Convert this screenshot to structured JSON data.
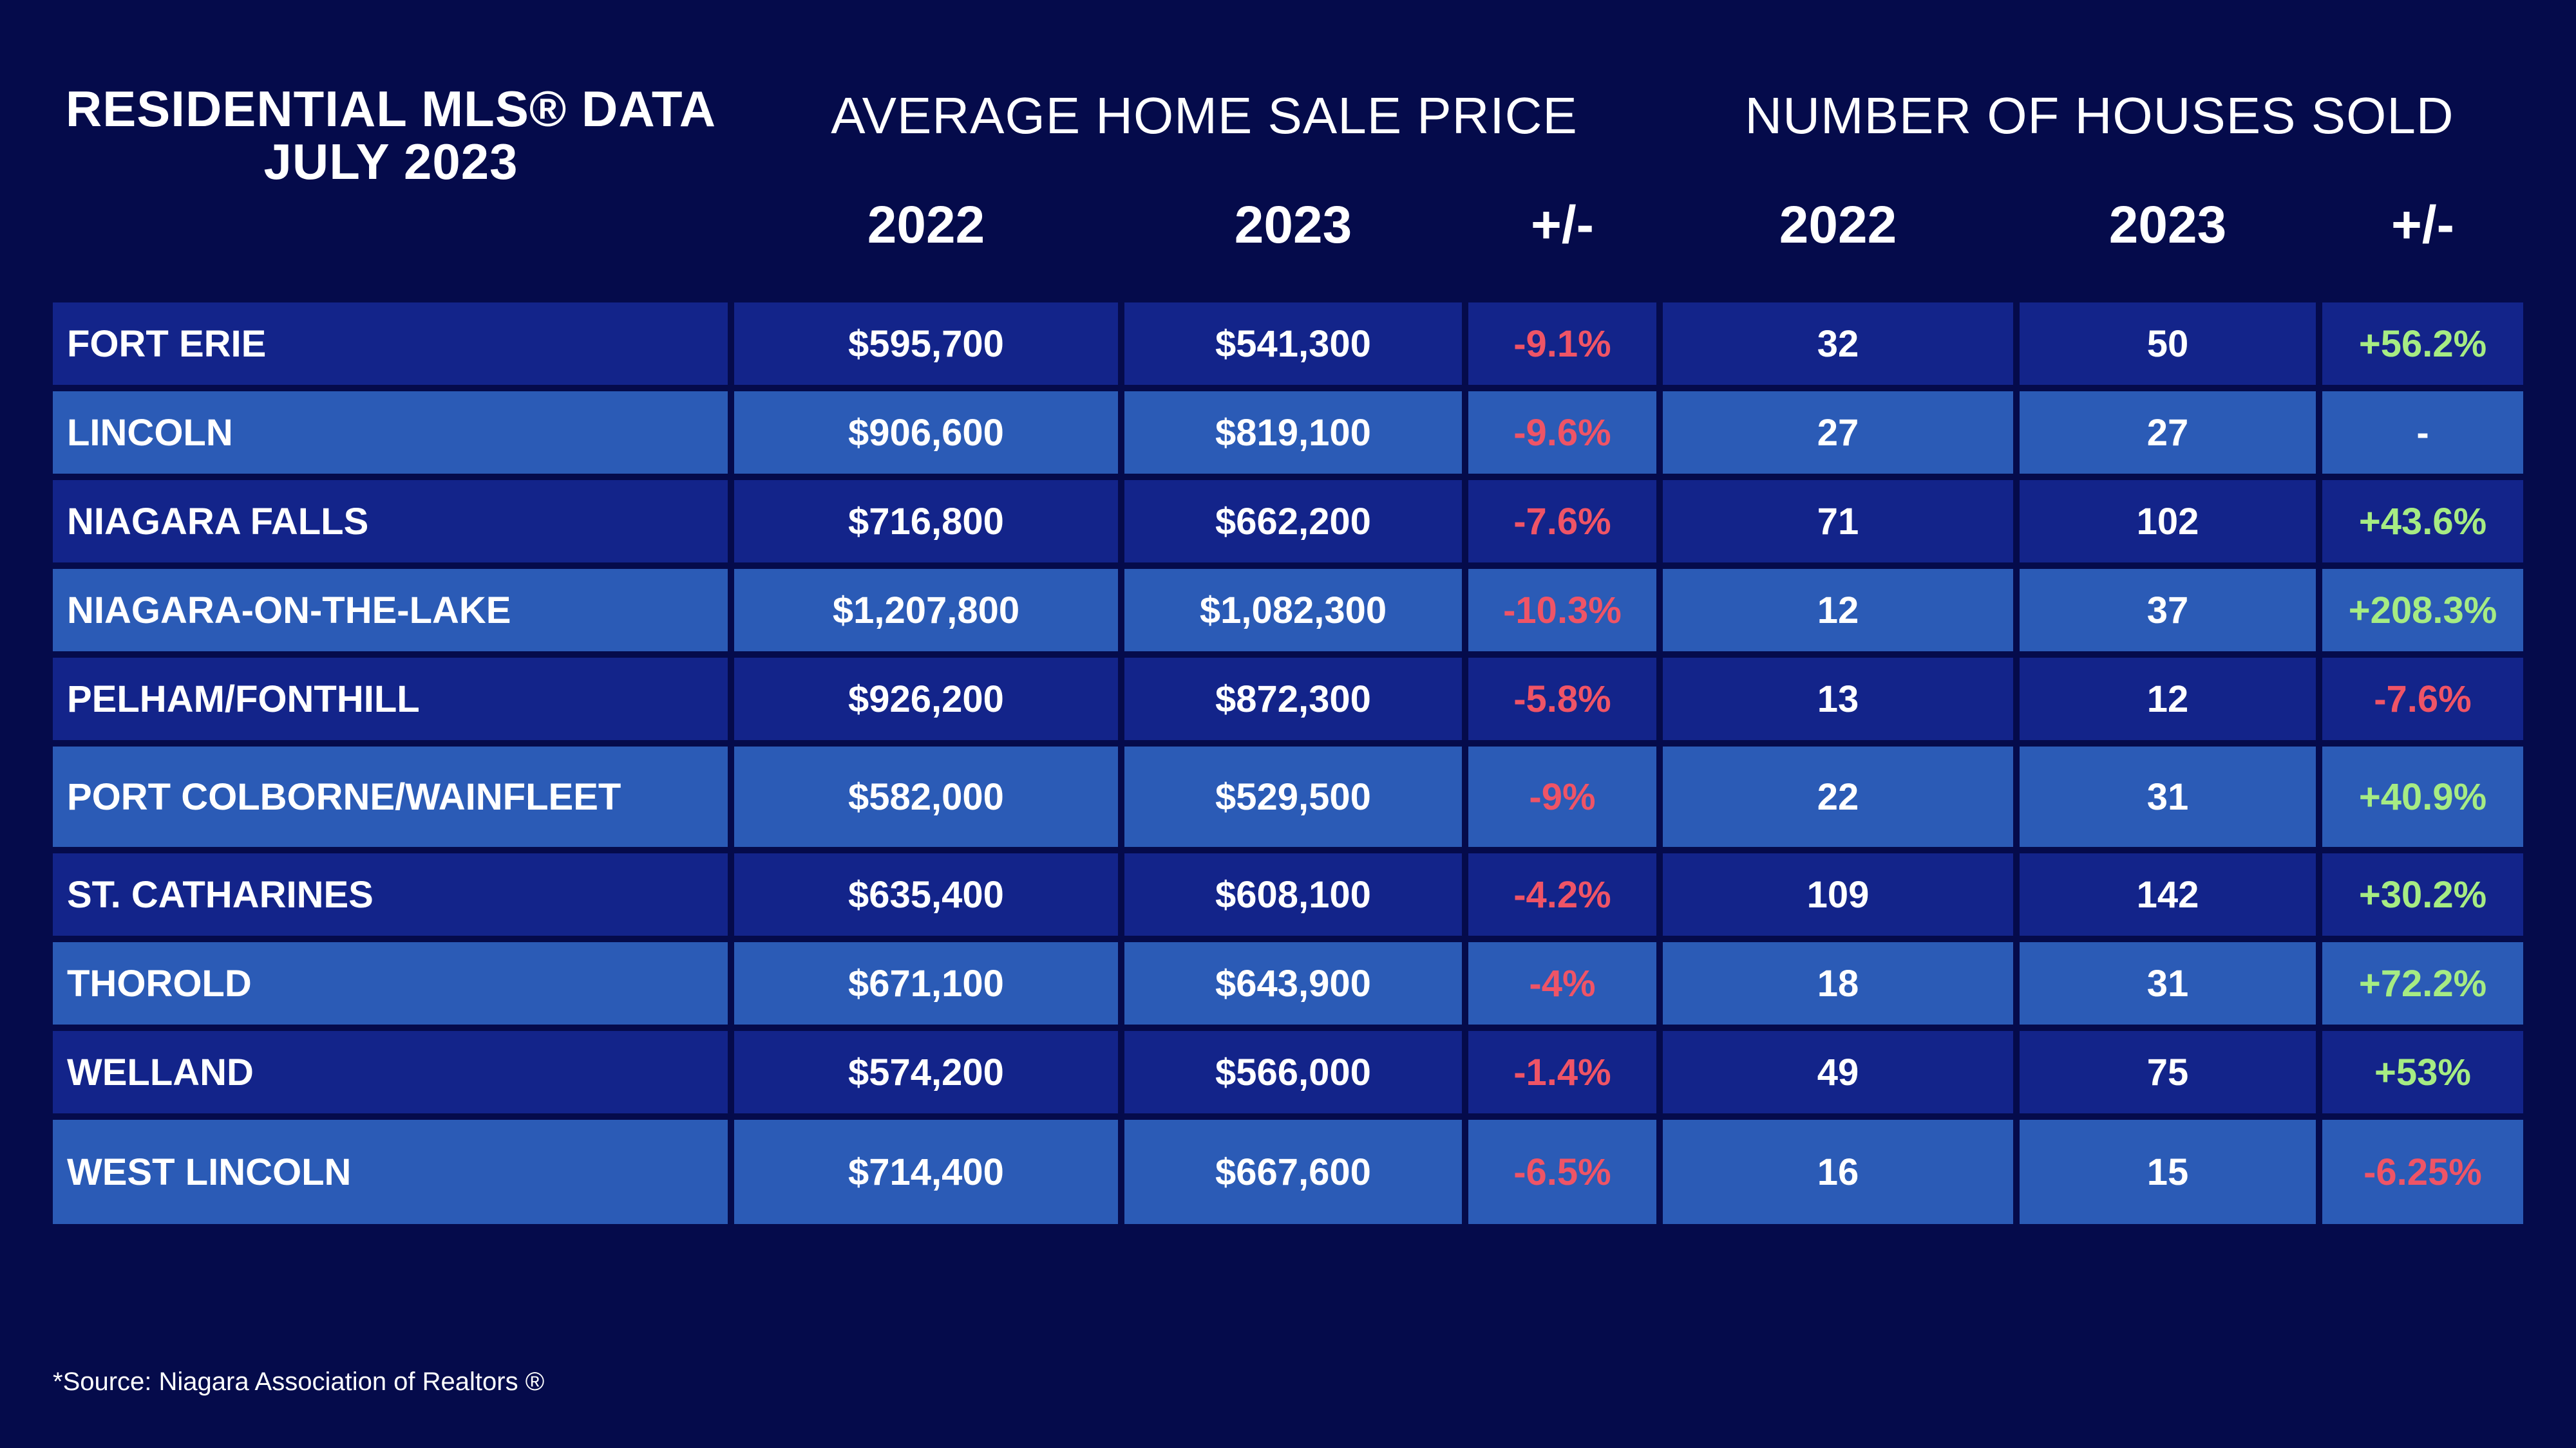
{
  "chart_data": {
    "type": "table",
    "title": "RESIDENTIAL MLS® DATA",
    "subtitle": "JULY 2023",
    "groups": [
      "AVERAGE HOME SALE PRICE",
      "NUMBER OF HOUSES SOLD"
    ],
    "columns": [
      "2022",
      "2023",
      "+/-",
      "2022",
      "2023",
      "+/-"
    ],
    "rows": [
      {
        "name": "FORT ERIE",
        "price_2022": "$595,700",
        "price_2023": "$541,300",
        "price_change": "-9.1%",
        "sold_2022": "32",
        "sold_2023": "50",
        "sold_change": "+56.2%"
      },
      {
        "name": "LINCOLN",
        "price_2022": "$906,600",
        "price_2023": "$819,100",
        "price_change": "-9.6%",
        "sold_2022": "27",
        "sold_2023": "27",
        "sold_change": "-"
      },
      {
        "name": "NIAGARA FALLS",
        "price_2022": "$716,800",
        "price_2023": "$662,200",
        "price_change": "-7.6%",
        "sold_2022": "71",
        "sold_2023": "102",
        "sold_change": "+43.6%"
      },
      {
        "name": "NIAGARA-ON-THE-LAKE",
        "price_2022": "$1,207,800",
        "price_2023": "$1,082,300",
        "price_change": "-10.3%",
        "sold_2022": "12",
        "sold_2023": "37",
        "sold_change": "+208.3%"
      },
      {
        "name": "PELHAM/FONTHILL",
        "price_2022": "$926,200",
        "price_2023": "$872,300",
        "price_change": "-5.8%",
        "sold_2022": "13",
        "sold_2023": "12",
        "sold_change": "-7.6%"
      },
      {
        "name": "PORT COLBORNE/WAINFLEET",
        "price_2022": "$582,000",
        "price_2023": "$529,500",
        "price_change": "-9%",
        "sold_2022": "22",
        "sold_2023": "31",
        "sold_change": "+40.9%"
      },
      {
        "name": "ST. CATHARINES",
        "price_2022": "$635,400",
        "price_2023": "$608,100",
        "price_change": "-4.2%",
        "sold_2022": "109",
        "sold_2023": "142",
        "sold_change": "+30.2%"
      },
      {
        "name": "THOROLD",
        "price_2022": "$671,100",
        "price_2023": "$643,900",
        "price_change": "-4%",
        "sold_2022": "18",
        "sold_2023": "31",
        "sold_change": "+72.2%"
      },
      {
        "name": "WELLAND",
        "price_2022": "$574,200",
        "price_2023": "$566,000",
        "price_change": "-1.4%",
        "sold_2022": "49",
        "sold_2023": "75",
        "sold_change": "+53%"
      },
      {
        "name": "WEST LINCOLN",
        "price_2022": "$714,400",
        "price_2023": "$667,600",
        "price_change": "-6.5%",
        "sold_2022": "16",
        "sold_2023": "15",
        "sold_change": "-6.25%"
      }
    ],
    "footnote": "*Source: Niagara Association of Realtors ®"
  },
  "colors": {
    "background": "#050b4b",
    "row_dark": "#13248a",
    "row_light": "#2b5bb6",
    "negative": "#ef5466",
    "positive": "#a6ec83"
  }
}
